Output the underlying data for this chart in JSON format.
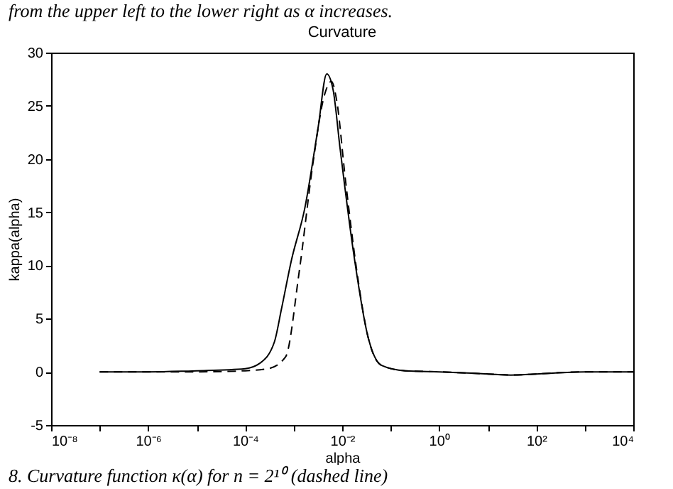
{
  "chart_data": {
    "type": "line",
    "title": "Curvature",
    "xlabel": "alpha",
    "ylabel": "kappa(alpha)",
    "log": "x",
    "grid": false,
    "annotations": [
      "from the upper left to the lower right as α increases.",
      "8. Curvature function κ(α) for n = 2¹⁰ (dashed line)"
    ],
    "xlim": [
      1e-08,
      10000
    ],
    "xticks": [
      {
        "value": 1e-08,
        "label": "10⁻⁸"
      },
      {
        "value": 1e-07,
        "label": null
      },
      {
        "value": 1e-06,
        "label": "10⁻⁶"
      },
      {
        "value": 1e-05,
        "label": null
      },
      {
        "value": 0.0001,
        "label": "10⁻⁴"
      },
      {
        "value": 0.001,
        "label": null
      },
      {
        "value": 0.01,
        "label": "10⁻²"
      },
      {
        "value": 0.1,
        "label": null
      },
      {
        "value": 1,
        "label": "10⁰"
      },
      {
        "value": 10,
        "label": null
      },
      {
        "value": 100,
        "label": "10²"
      },
      {
        "value": 1000,
        "label": null
      },
      {
        "value": 10000,
        "label": "10⁴"
      }
    ],
    "ylim": [
      -5,
      30
    ],
    "yticks": [
      -5,
      0,
      5,
      10,
      15,
      20,
      25,
      30
    ],
    "series": [
      {
        "color": "#000000",
        "line_style": "solid",
        "x": [
          1e-07,
          1e-06,
          1e-05,
          0.0001,
          0.0002,
          0.0004,
          0.00056,
          0.0009,
          0.0017,
          0.0032,
          0.0048,
          0.0065,
          0.0091,
          0.0174,
          0.034,
          0.065,
          0.2,
          1,
          10,
          30,
          100,
          1000,
          10000
        ],
        "values": [
          0,
          0,
          0.1,
          0.3,
          0.8,
          2.8,
          5.9,
          10.5,
          15.4,
          23,
          28,
          26.5,
          20.9,
          11,
          3.3,
          0.6,
          0.1,
          0,
          -0.2,
          -0.3,
          -0.2,
          0,
          0
        ]
      },
      {
        "color": "#000000",
        "line_style": "dashed",
        "x": [
          1e-07,
          1e-06,
          1e-05,
          0.0001,
          0.0003,
          0.00068,
          0.0013,
          0.0025,
          0.0043,
          0.006,
          0.0077,
          0.0117,
          0.02,
          0.034,
          0.065,
          0.2,
          1,
          10,
          30,
          100,
          1000,
          10000
        ],
        "values": [
          0,
          0,
          0,
          0.1,
          0.3,
          1.4,
          9.4,
          19.6,
          26,
          27.3,
          25.5,
          18,
          9.5,
          3.3,
          0.6,
          0.1,
          0,
          -0.2,
          -0.3,
          -0.2,
          0,
          0
        ]
      }
    ]
  }
}
